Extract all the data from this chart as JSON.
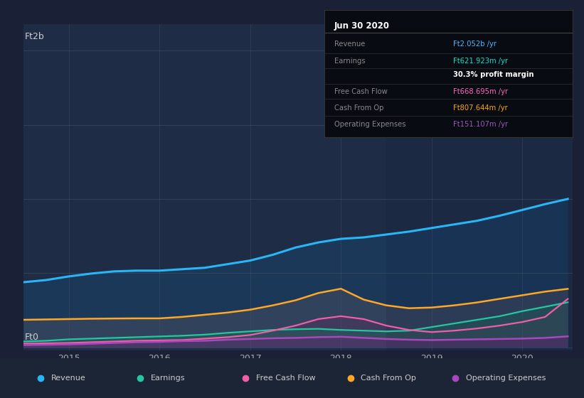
{
  "bg_color": "#1a2035",
  "chart_bg": "#1e2d45",
  "title_date": "Jun 30 2020",
  "tooltip": {
    "Revenue": {
      "value": "Ft2.052b",
      "color": "#4db8ff"
    },
    "Earnings": {
      "value": "Ft621.923m",
      "color": "#00e5cc"
    },
    "profit_margin": "30.3%",
    "Free Cash Flow": {
      "value": "Ft668.695m",
      "color": "#ff69b4"
    },
    "Cash From Op": {
      "value": "Ft807.644m",
      "color": "#ffa500"
    },
    "Operating Expenses": {
      "value": "Ft151.107m",
      "color": "#9b59b6"
    }
  },
  "ylabel_top": "Ft2b",
  "ylabel_bottom": "Ft0",
  "xlabels": [
    "2015",
    "2016",
    "2017",
    "2018",
    "2019",
    "2020"
  ],
  "legend": [
    {
      "label": "Revenue",
      "color": "#29b6f6"
    },
    {
      "label": "Earnings",
      "color": "#26c6a0"
    },
    {
      "label": "Free Cash Flow",
      "color": "#ef5fa7"
    },
    {
      "label": "Cash From Op",
      "color": "#ffa726"
    },
    {
      "label": "Operating Expenses",
      "color": "#ab47bc"
    }
  ],
  "series": {
    "x": [
      2014.5,
      2014.75,
      2015.0,
      2015.25,
      2015.5,
      2015.75,
      2016.0,
      2016.25,
      2016.5,
      2016.75,
      2017.0,
      2017.25,
      2017.5,
      2017.75,
      2018.0,
      2018.25,
      2018.5,
      2018.75,
      2019.0,
      2019.25,
      2019.5,
      2019.75,
      2020.0,
      2020.25,
      2020.5
    ],
    "revenue": [
      900,
      930,
      980,
      1020,
      1050,
      1060,
      1060,
      1080,
      1100,
      1150,
      1200,
      1280,
      1380,
      1450,
      1500,
      1520,
      1560,
      1600,
      1650,
      1700,
      1750,
      1820,
      1900,
      1980,
      2052
    ],
    "earnings": [
      80,
      90,
      110,
      120,
      130,
      140,
      150,
      160,
      175,
      200,
      220,
      240,
      250,
      255,
      240,
      230,
      220,
      230,
      280,
      330,
      380,
      430,
      500,
      560,
      622
    ],
    "free_cash_flow": [
      50,
      55,
      60,
      70,
      80,
      90,
      95,
      100,
      120,
      140,
      170,
      230,
      300,
      390,
      430,
      390,
      300,
      240,
      210,
      230,
      260,
      300,
      350,
      420,
      669
    ],
    "cash_from_op": [
      380,
      385,
      390,
      395,
      398,
      400,
      400,
      420,
      450,
      480,
      520,
      580,
      650,
      750,
      810,
      660,
      580,
      540,
      550,
      580,
      620,
      670,
      720,
      770,
      808
    ],
    "op_expenses": [
      30,
      35,
      40,
      50,
      60,
      70,
      75,
      85,
      90,
      105,
      115,
      125,
      130,
      140,
      145,
      130,
      115,
      105,
      100,
      105,
      110,
      115,
      120,
      130,
      151
    ]
  }
}
